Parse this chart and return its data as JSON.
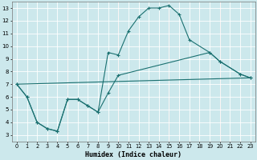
{
  "xlabel": "Humidex (Indice chaleur)",
  "bg_color": "#cce8ec",
  "grid_color_white": "#ffffff",
  "grid_color_red": "#e8b8b8",
  "line_color": "#1a7070",
  "xlim": [
    -0.5,
    23.5
  ],
  "ylim": [
    2.5,
    13.5
  ],
  "xticks": [
    0,
    1,
    2,
    3,
    4,
    5,
    6,
    7,
    8,
    9,
    10,
    11,
    12,
    13,
    14,
    15,
    16,
    17,
    18,
    19,
    20,
    21,
    22,
    23
  ],
  "yticks": [
    3,
    4,
    5,
    6,
    7,
    8,
    9,
    10,
    11,
    12,
    13
  ],
  "red_vlines": [
    5,
    10,
    15,
    20
  ],
  "line1_x": [
    0,
    1,
    2,
    3,
    4,
    5,
    6,
    7,
    8,
    9,
    10,
    11,
    12,
    13,
    14,
    15,
    16,
    17,
    19,
    20,
    22,
    23
  ],
  "line1_y": [
    7.0,
    6.0,
    4.0,
    3.5,
    3.3,
    5.8,
    5.8,
    5.3,
    4.8,
    9.5,
    9.3,
    11.2,
    12.3,
    13.0,
    13.0,
    13.2,
    12.5,
    10.5,
    9.5,
    8.8,
    7.8,
    7.5
  ],
  "line2_x": [
    0,
    23
  ],
  "line2_y": [
    7.0,
    7.5
  ],
  "line3_x": [
    0,
    1,
    2,
    3,
    4,
    5,
    6,
    7,
    8,
    9,
    10,
    19,
    20,
    22,
    23
  ],
  "line3_y": [
    7.0,
    6.0,
    4.0,
    3.5,
    3.3,
    5.8,
    5.8,
    5.3,
    4.8,
    6.3,
    7.7,
    9.5,
    8.8,
    7.8,
    7.5
  ]
}
